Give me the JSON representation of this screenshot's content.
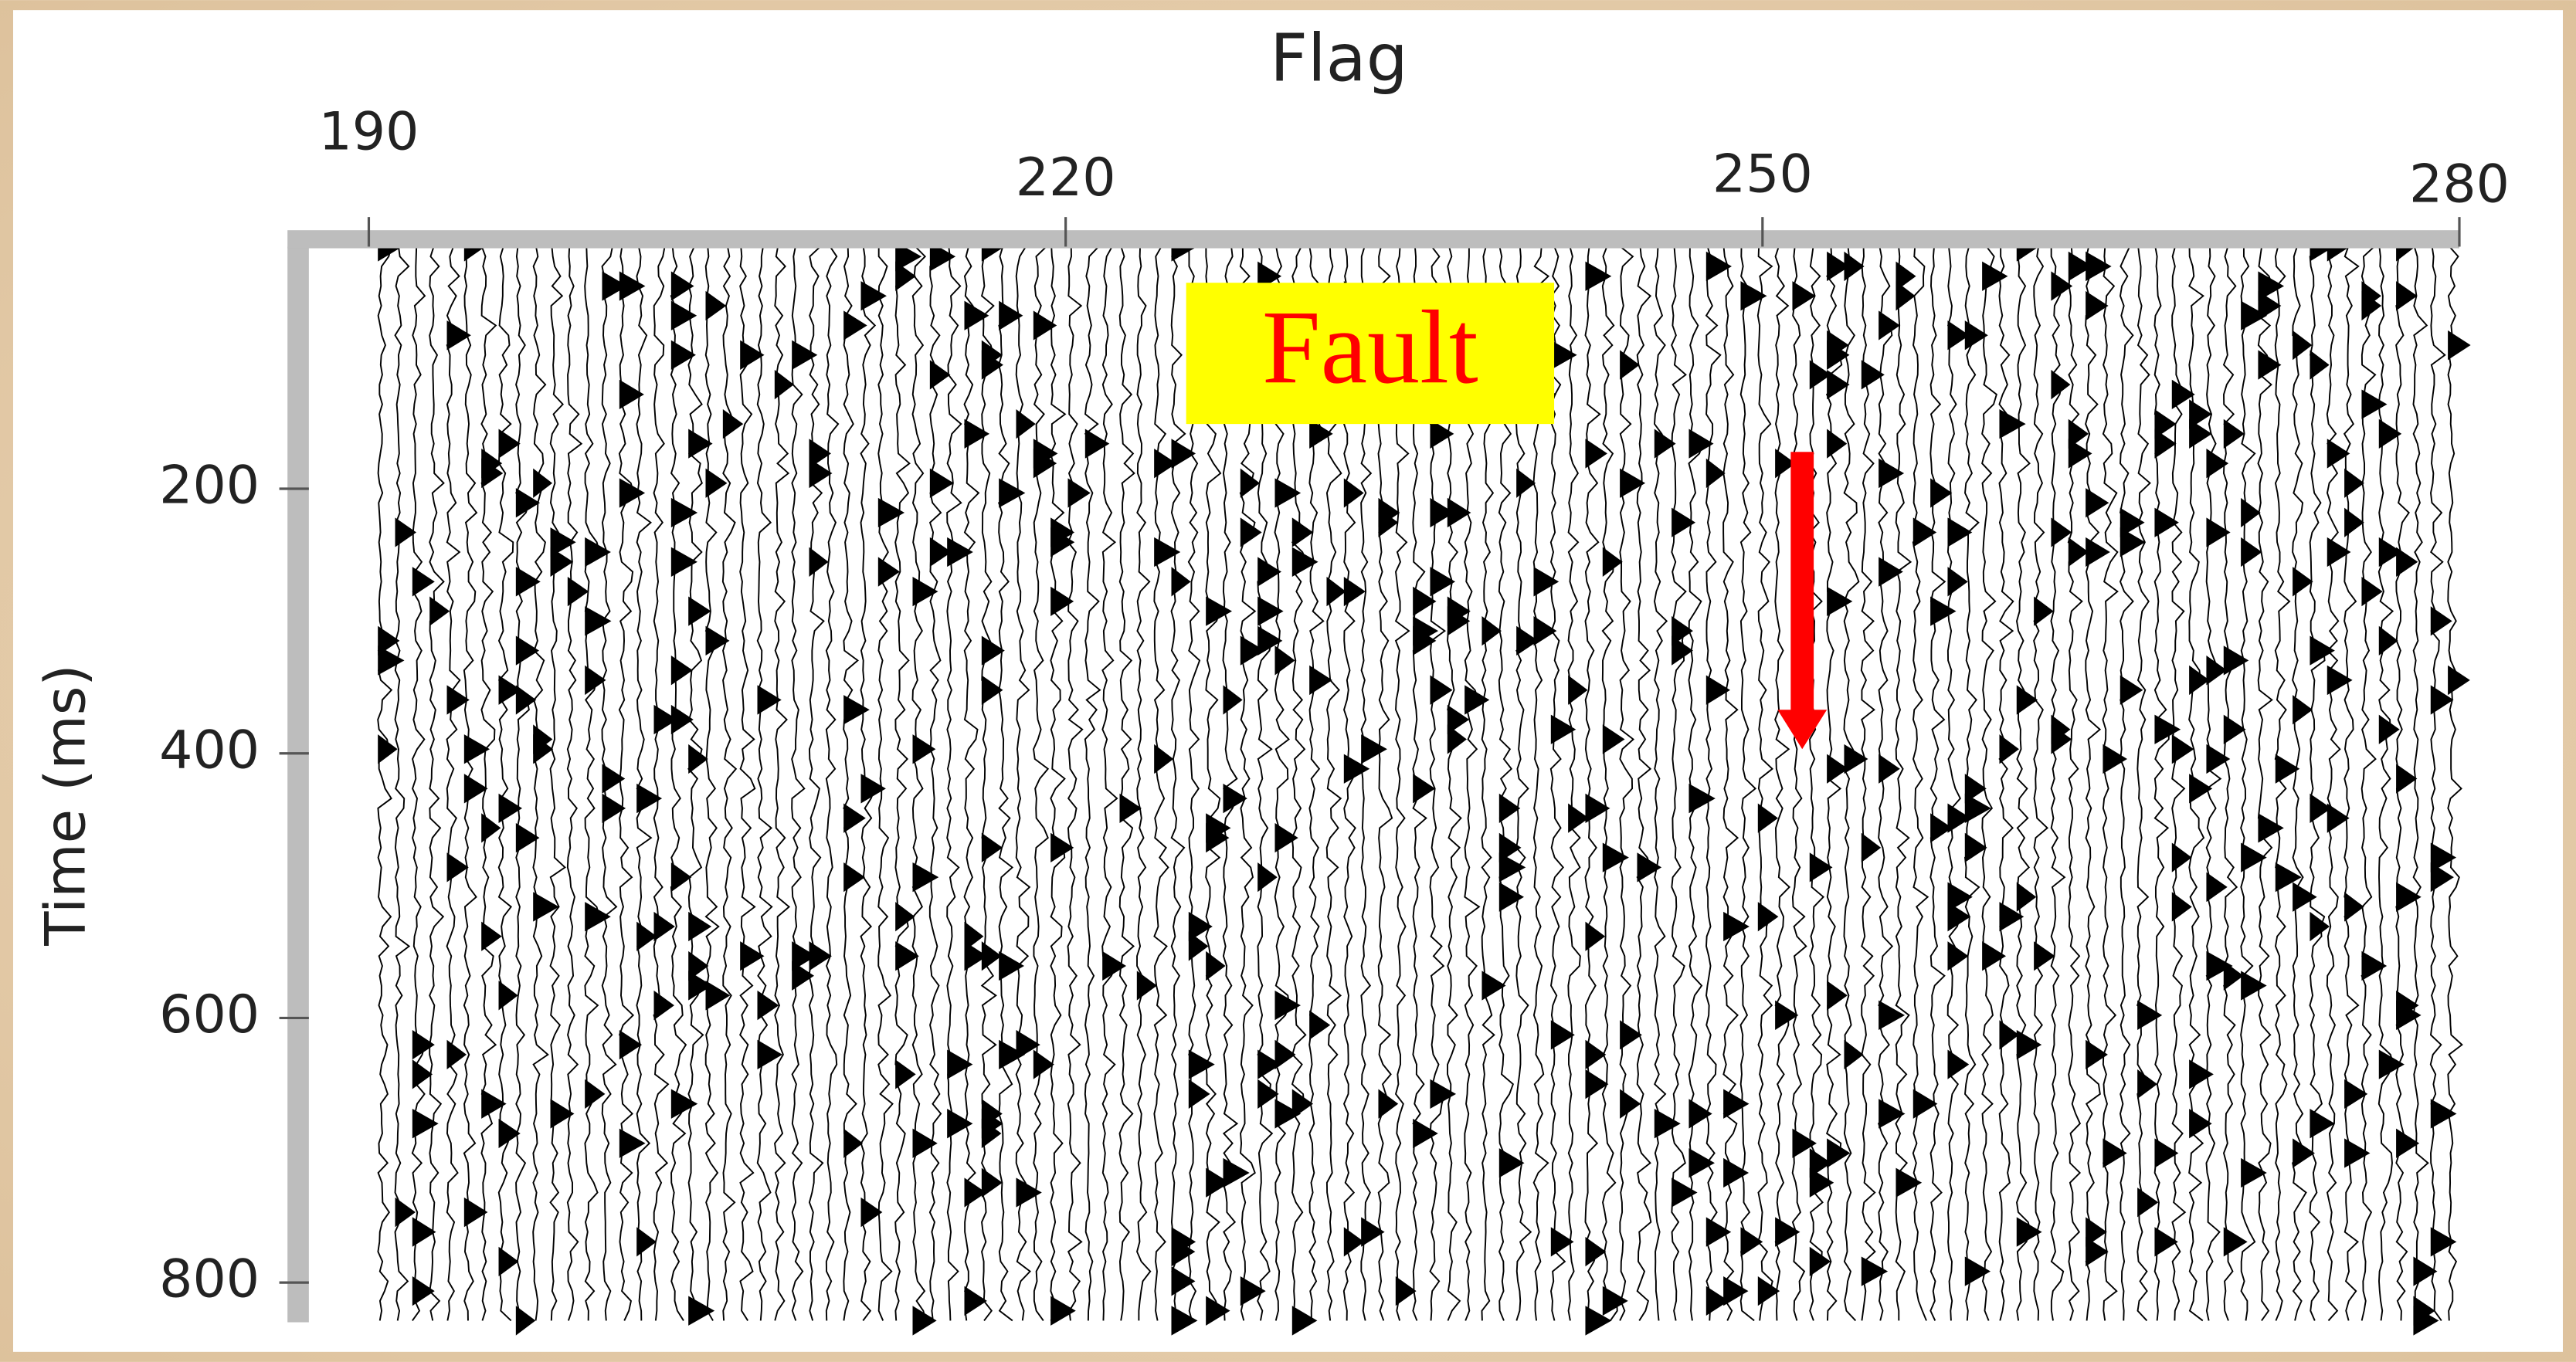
{
  "chart_data": {
    "type": "wiggle",
    "xlabel": "Flag",
    "ylabel": "Time (ms)",
    "xlim": [
      186.5,
      280
    ],
    "xticks": [
      190,
      220,
      250,
      280
    ],
    "ylim": [
      17,
      830
    ],
    "yticks": [
      200,
      400,
      600,
      800
    ],
    "annotation": "Fault"
  }
}
